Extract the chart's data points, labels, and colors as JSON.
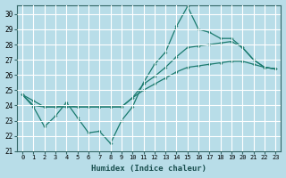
{
  "xlabel": "Humidex (Indice chaleur)",
  "ylabel": "",
  "xlim": [
    -0.5,
    23.5
  ],
  "ylim": [
    21,
    30.6
  ],
  "yticks": [
    21,
    22,
    23,
    24,
    25,
    26,
    27,
    28,
    29,
    30
  ],
  "xticks": [
    0,
    1,
    2,
    3,
    4,
    5,
    6,
    7,
    8,
    9,
    10,
    11,
    12,
    13,
    14,
    15,
    16,
    17,
    18,
    19,
    20,
    21,
    22,
    23
  ],
  "bg_color": "#b8dde8",
  "grid_color": "#ffffff",
  "line_color": "#1a7a6e",
  "line1": [
    24.7,
    23.9,
    22.6,
    23.3,
    24.2,
    23.2,
    22.2,
    22.3,
    21.5,
    23.0,
    23.9,
    25.5,
    26.7,
    27.5,
    29.2,
    30.5,
    29.0,
    28.8,
    28.4,
    28.4,
    27.8,
    27.0,
    26.5,
    26.4
  ],
  "line2": [
    24.7,
    24.3,
    23.9,
    23.9,
    23.9,
    23.9,
    23.9,
    23.9,
    23.9,
    23.9,
    24.5,
    25.0,
    25.4,
    25.8,
    26.2,
    26.5,
    26.6,
    26.7,
    26.8,
    26.9,
    26.9,
    26.7,
    26.5,
    26.4
  ],
  "line3": [
    24.7,
    24.0,
    23.9,
    23.9,
    24.0,
    23.9,
    23.9,
    23.9,
    23.9,
    23.9,
    24.5,
    25.4,
    25.9,
    26.5,
    27.2,
    27.8,
    27.9,
    28.0,
    28.1,
    28.2,
    27.8,
    27.0,
    26.5,
    26.4
  ]
}
